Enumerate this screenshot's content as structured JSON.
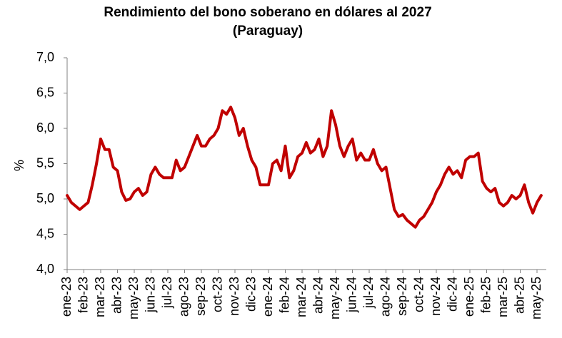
{
  "chart_data": {
    "type": "line",
    "title": "Rendimiento del bono soberano en dólares al 2027",
    "subtitle": "(Paraguay)",
    "y_label": "%",
    "categories": [
      "ene-23",
      null,
      null,
      null,
      "feb-23",
      null,
      null,
      null,
      "mar-23",
      null,
      null,
      null,
      "abr-23",
      null,
      null,
      null,
      "may-23",
      null,
      null,
      null,
      "jun-23",
      null,
      null,
      null,
      "jul-23",
      null,
      null,
      null,
      "ago-23",
      null,
      null,
      null,
      "sep-23",
      null,
      null,
      null,
      "oct-23",
      null,
      null,
      null,
      "nov-23",
      null,
      null,
      null,
      "dic-23",
      null,
      null,
      null,
      "ene-24",
      null,
      null,
      null,
      "feb-24",
      null,
      null,
      null,
      "mar-24",
      null,
      null,
      null,
      "abr-24",
      null,
      null,
      null,
      "may-24",
      null,
      null,
      null,
      "jun-24",
      null,
      null,
      null,
      "jul-24",
      null,
      null,
      null,
      "ago-24",
      null,
      null,
      null,
      "sep-24",
      null,
      null,
      null,
      "oct-24",
      null,
      null,
      null,
      "nov-24",
      null,
      null,
      null,
      "dic-24",
      null,
      null,
      null,
      "ene-25",
      null,
      null,
      null,
      "feb-25",
      null,
      null,
      null,
      "mar-25",
      null,
      null,
      null,
      "abr-25",
      null,
      null,
      null,
      "may-25",
      null
    ],
    "series": [
      {
        "color": "#c00000",
        "values": [
          5.05,
          4.95,
          4.9,
          4.85,
          4.9,
          4.95,
          5.2,
          5.5,
          5.85,
          5.7,
          5.7,
          5.45,
          5.4,
          5.1,
          4.98,
          5.0,
          5.1,
          5.15,
          5.05,
          5.1,
          5.35,
          5.45,
          5.35,
          5.3,
          5.3,
          5.3,
          5.55,
          5.4,
          5.45,
          5.6,
          5.75,
          5.9,
          5.75,
          5.75,
          5.85,
          5.9,
          6.0,
          6.25,
          6.2,
          6.3,
          6.15,
          5.9,
          6.0,
          5.75,
          5.55,
          5.45,
          5.2,
          5.2,
          5.2,
          5.5,
          5.55,
          5.4,
          5.75,
          5.3,
          5.4,
          5.6,
          5.65,
          5.8,
          5.65,
          5.7,
          5.85,
          5.6,
          5.75,
          6.25,
          6.05,
          5.75,
          5.6,
          5.75,
          5.85,
          5.55,
          5.65,
          5.55,
          5.55,
          5.7,
          5.5,
          5.4,
          5.45,
          5.15,
          4.85,
          4.75,
          4.78,
          4.7,
          4.65,
          4.6,
          4.7,
          4.75,
          4.85,
          4.95,
          5.1,
          5.2,
          5.35,
          5.45,
          5.35,
          5.4,
          5.3,
          5.55,
          5.6,
          5.6,
          5.65,
          5.25,
          5.15,
          5.1,
          5.15,
          4.95,
          4.9,
          4.95,
          5.05,
          5.0,
          5.05,
          5.2,
          4.95,
          4.8,
          4.95,
          5.05
        ]
      }
    ],
    "ylim": [
      4,
      7
    ],
    "yticks": [
      {
        "value": 4,
        "label": "4,0"
      },
      {
        "value": 4.5,
        "label": "4,5"
      },
      {
        "value": 5,
        "label": "5,0"
      },
      {
        "value": 5.5,
        "label": "5,5"
      },
      {
        "value": 6,
        "label": "6,0"
      },
      {
        "value": 6.5,
        "label": "6,5"
      },
      {
        "value": 7,
        "label": "7,0"
      }
    ],
    "grid": false
  }
}
